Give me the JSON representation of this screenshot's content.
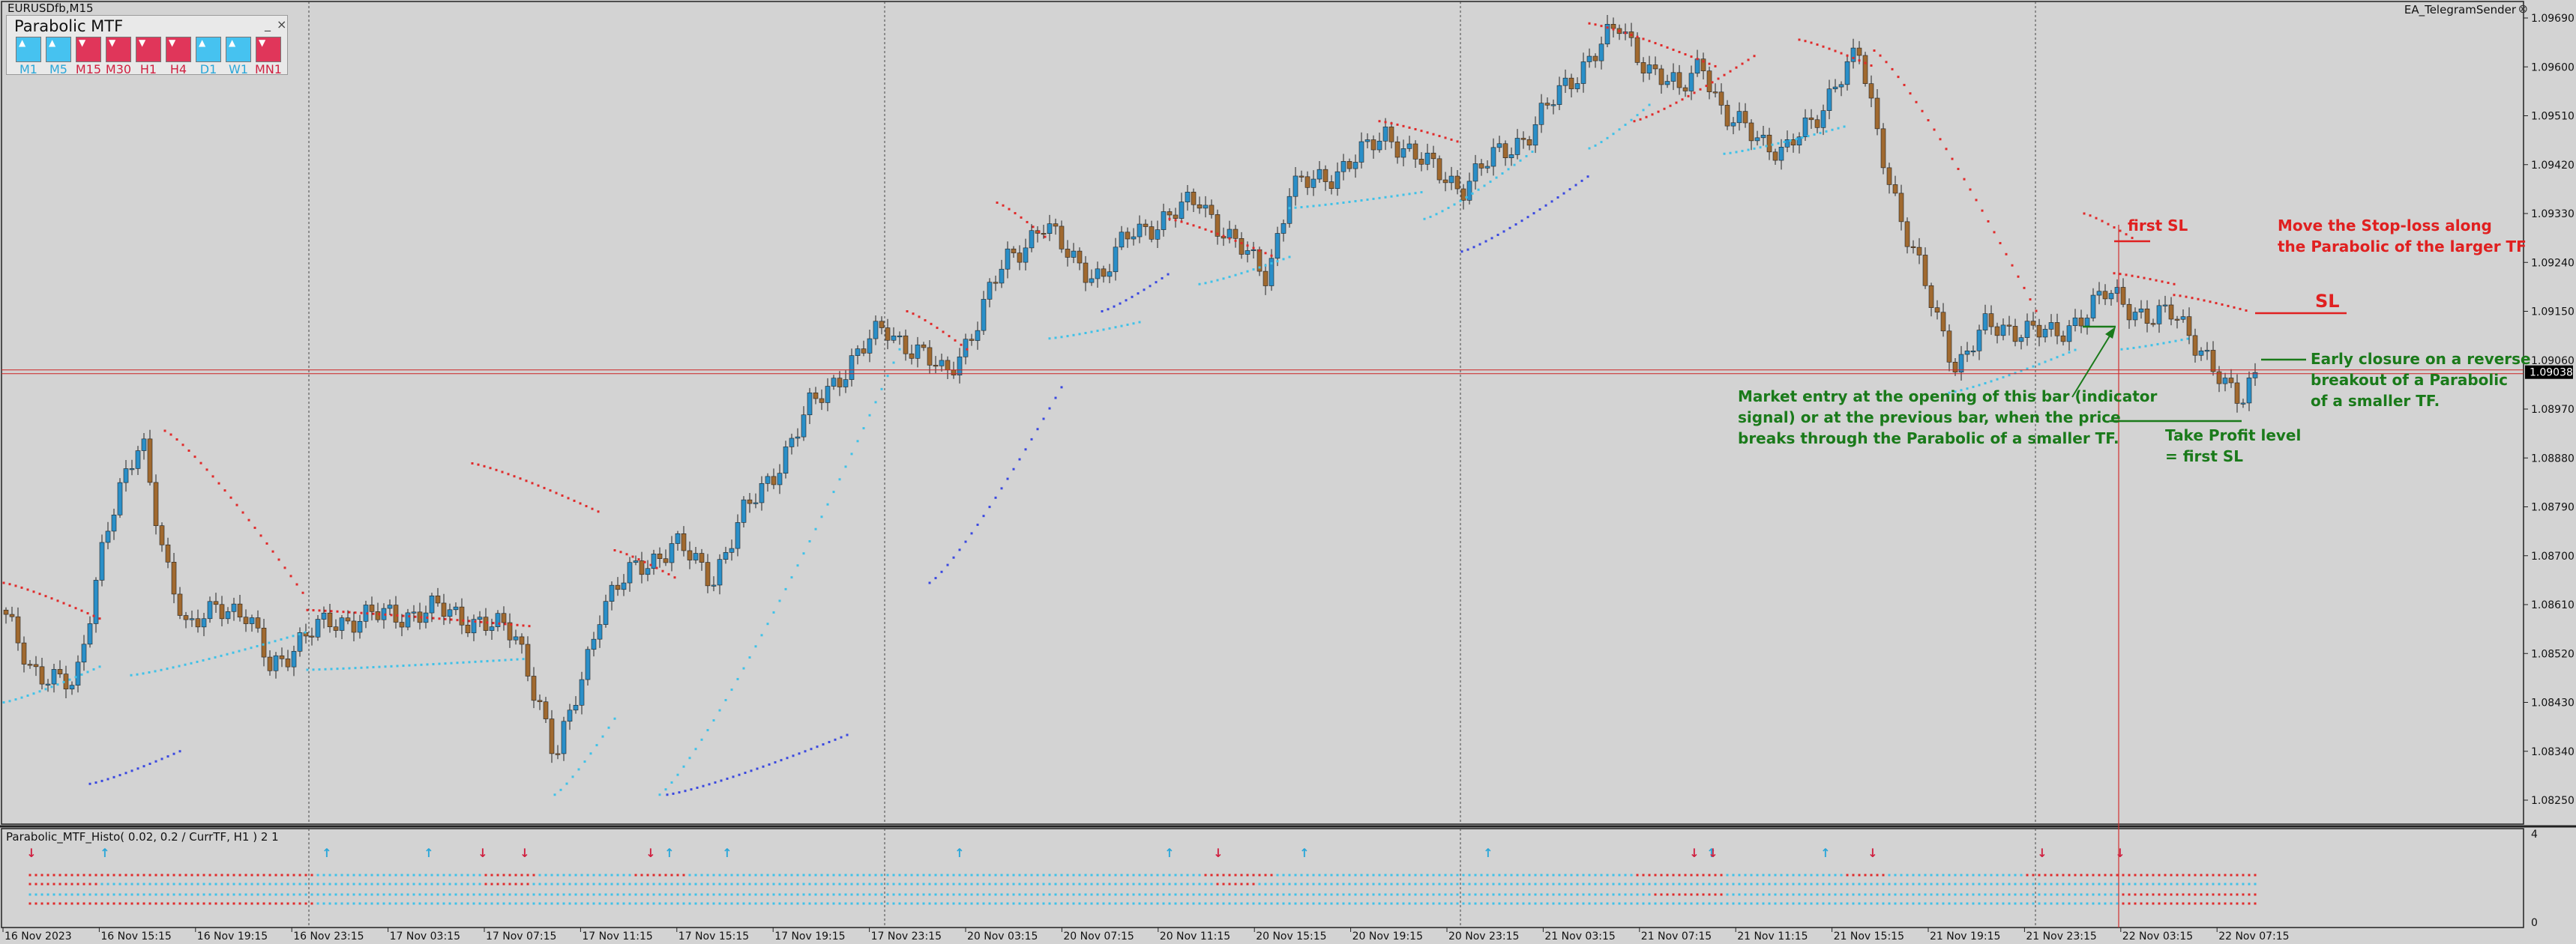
{
  "window": {
    "symbol": "EURUSDfb,M15",
    "expert": "EA_TelegramSender",
    "close_icon": "close-circle-icon"
  },
  "panel": {
    "title": "Parabolic MTF",
    "minimize": "_",
    "close": "×",
    "timeframes": [
      {
        "label": "M1",
        "state": "up"
      },
      {
        "label": "M5",
        "state": "up"
      },
      {
        "label": "M15",
        "state": "down"
      },
      {
        "label": "M30",
        "state": "down"
      },
      {
        "label": "H1",
        "state": "down"
      },
      {
        "label": "H4",
        "state": "down"
      },
      {
        "label": "D1",
        "state": "up"
      },
      {
        "label": "W1",
        "state": "up"
      },
      {
        "label": "MN1",
        "state": "down"
      }
    ],
    "colors": {
      "up": "#46c2f0",
      "down": "#e0365a",
      "up_text": "#2aa7d9",
      "down_text": "#d02040"
    }
  },
  "price_axis": {
    "ticks": [
      "1.09690",
      "1.09600",
      "1.09510",
      "1.09420",
      "1.09330",
      "1.09240",
      "1.09150",
      "1.09060",
      "1.08970",
      "1.08880",
      "1.08790",
      "1.08700",
      "1.08610",
      "1.08520",
      "1.08430",
      "1.08340",
      "1.08250"
    ],
    "current_price": "1.09038",
    "current_price_bg": "#000000",
    "line_color": "#cc2222"
  },
  "time_axis": {
    "labels": [
      "16 Nov 2023",
      "16 Nov 15:15",
      "16 Nov 19:15",
      "16 Nov 23:15",
      "17 Nov 03:15",
      "17 Nov 07:15",
      "17 Nov 11:15",
      "17 Nov 15:15",
      "17 Nov 19:15",
      "17 Nov 23:15",
      "20 Nov 03:15",
      "20 Nov 07:15",
      "20 Nov 11:15",
      "20 Nov 15:15",
      "20 Nov 19:15",
      "20 Nov 23:15",
      "21 Nov 03:15",
      "21 Nov 07:15",
      "21 Nov 11:15",
      "21 Nov 15:15",
      "21 Nov 19:15",
      "21 Nov 23:15",
      "22 Nov 03:15",
      "22 Nov 07:15"
    ]
  },
  "subwindow": {
    "title": "Parabolic_MTF_Histo( 0.02, 0.2 / CurrTF, H1 ) 2 1",
    "scale_top": "4",
    "scale_bottom": "0",
    "up_arrow_icon": "up-arrow-icon",
    "down_arrow_icon": "down-arrow-icon"
  },
  "annotations": {
    "first_sl": "first SL",
    "move_sl_line1": "Move the Stop-loss along",
    "move_sl_line2": "the Parabolic of the larger TF",
    "sl": "SL",
    "early_closure_line1": "Early closure on a reverse",
    "early_closure_line2": "breakout of a Parabolic",
    "early_closure_line3": "of a smaller TF.",
    "entry_line1": "Market entry at the opening of this bar (indicator",
    "entry_line2": "signal) or at the previous bar, when the price",
    "entry_line3": "breaks through the Parabolic of a smaller TF.",
    "tp_line1": "Take Profit level",
    "tp_line2": "= first SL",
    "red_color": "#e02020",
    "green_color": "#1a7a1a"
  },
  "colors": {
    "background": "#d3d3d3",
    "bull_candle": "#2a8fc8",
    "bear_candle": "#a0692f",
    "psar_above": "#e02a2a",
    "psar_below": "#3fc2e8",
    "psar_far": "#3a48e0"
  }
}
